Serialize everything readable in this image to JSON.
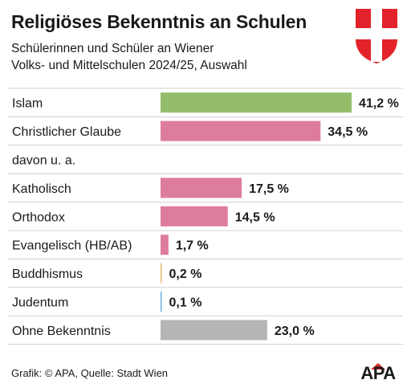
{
  "header": {
    "title": "Religiöses Bekenntnis an Schulen",
    "subtitle_line1": "Schülerinnen und Schüler an Wiener",
    "subtitle_line2": "Volks- und Mittelschulen 2024/25, Auswahl"
  },
  "footer": {
    "source": "Grafik: © APA, Quelle: Stadt Wien",
    "logo_text": "APA"
  },
  "colors": {
    "islam": "#93bd6a",
    "christian": "#de7c9c",
    "buddhism": "#e0b86e",
    "judaism": "#6ab0dc",
    "none": "#b5b5b5",
    "crest_red": "#e2232b",
    "crest_white": "#ffffff",
    "logo_red": "#e2232b"
  },
  "chart_data": {
    "type": "bar",
    "orientation": "horizontal",
    "unit": "%",
    "xlim": [
      0,
      41.2
    ],
    "rows": [
      {
        "label": "Islam",
        "value": 41.2,
        "value_label": "41,2 %",
        "color": "#93bd6a"
      },
      {
        "label": "Christlicher Glaube",
        "value": 34.5,
        "value_label": "34,5 %",
        "color": "#de7c9c"
      },
      {
        "label": "davon u. a.",
        "value": null,
        "value_label": "",
        "color": ""
      },
      {
        "label": "Katholisch",
        "value": 17.5,
        "value_label": "17,5 %",
        "color": "#de7c9c"
      },
      {
        "label": "Orthodox",
        "value": 14.5,
        "value_label": "14,5 %",
        "color": "#de7c9c"
      },
      {
        "label": "Evangelisch (HB/AB)",
        "value": 1.7,
        "value_label": "1,7 %",
        "color": "#de7c9c"
      },
      {
        "label": "Buddhismus",
        "value": 0.2,
        "value_label": "0,2 %",
        "color": "#e0b86e"
      },
      {
        "label": "Judentum",
        "value": 0.1,
        "value_label": "0,1 %",
        "color": "#6ab0dc"
      },
      {
        "label": "Ohne Bekenntnis",
        "value": 23.0,
        "value_label": "23,0 %",
        "color": "#b5b5b5"
      }
    ]
  }
}
